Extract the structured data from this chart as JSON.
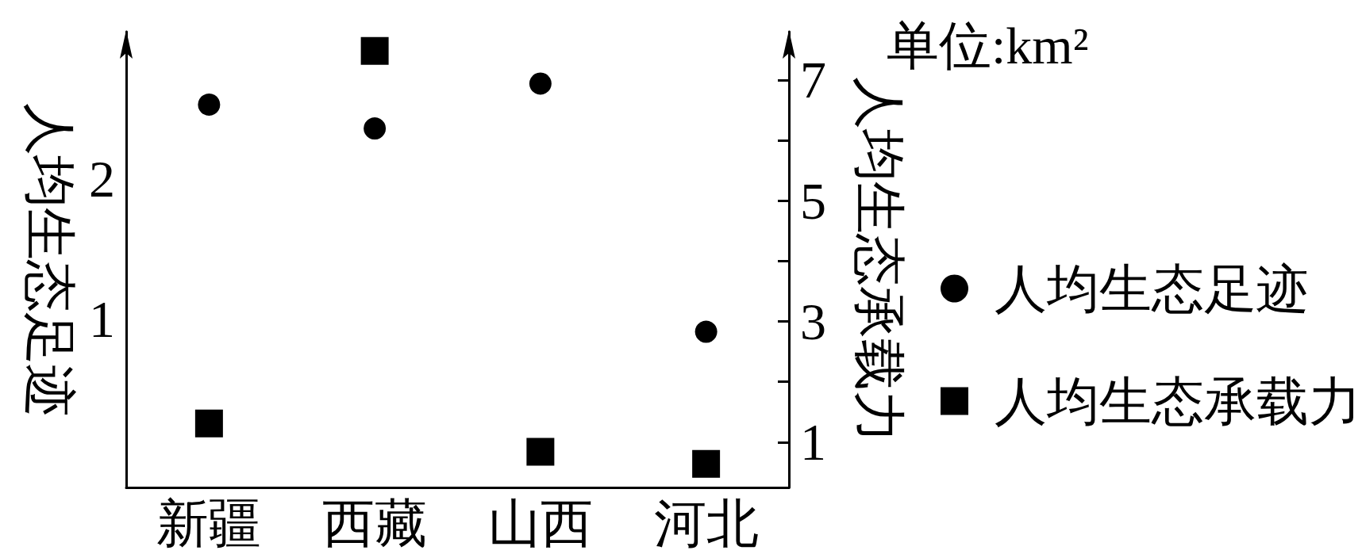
{
  "chart_data": {
    "type": "scatter",
    "categories": [
      "新疆",
      "西藏",
      "山西",
      "河北"
    ],
    "series": [
      {
        "name": "人均生态足迹",
        "color": "#000000",
        "marker": "circle",
        "values": [
          2.53,
          2.36,
          2.68,
          0.91
        ]
      },
      {
        "name": "人均生态承载力",
        "color": "#000000",
        "marker": "square",
        "axis": "y2",
        "values": [
          1.31,
          7.48,
          0.84,
          0.64
        ]
      }
    ],
    "ylabel": "人均生态足迹",
    "y2label": "人均生态承载力",
    "ylim": [
      -0.2,
      3.05
    ],
    "yticks": [
      1,
      2
    ],
    "y2lim": [
      0.25,
      7.8
    ],
    "y2ticks": [
      1,
      {
        "value": 2,
        "label": null
      },
      3,
      {
        "value": 4,
        "label": null
      },
      5,
      {
        "value": 6,
        "label": null
      },
      7
    ],
    "annotations": [
      "单位:km²"
    ],
    "legend": "right",
    "grid": false
  }
}
